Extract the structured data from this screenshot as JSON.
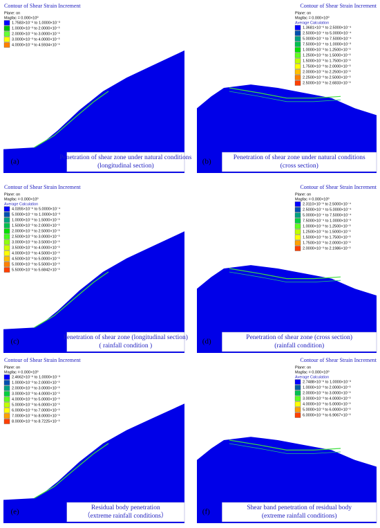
{
  "panels": [
    {
      "label": "(a)",
      "header": "Contour of Shear Strain Increment",
      "plane": "Plane: on",
      "magfac": "Magfac = 0.000×10⁰",
      "legend": [
        {
          "text": "1.7583×10⁻⁶ to 1.0000×10⁻³",
          "color": "#0000ff"
        },
        {
          "text": "1.0000×10⁻³ to 2.0000×10⁻³",
          "color": "#00c000"
        },
        {
          "text": "2.0000×10⁻³ to 3.0000×10⁻³",
          "color": "#66ff33"
        },
        {
          "text": "3.0000×10⁻³ to 4.0000×10⁻³",
          "color": "#ffff00"
        },
        {
          "text": "4.0000×10⁻³ to 4.5934×10⁻³",
          "color": "#ff8000"
        }
      ],
      "caption": [
        "Penetration of shear zone under natural conditions",
        "(longitudinal section)"
      ]
    },
    {
      "label": "(b)",
      "header": "Contour of Shear Strain Increment",
      "plane": "Plane: on",
      "magfac": "Magfac = 0.000×10⁰",
      "calculation": "Average Calculation",
      "legend": [
        {
          "text": "1.3681×10⁻⁶ to 2.5000×10⁻⁴",
          "color": "#0000ff"
        },
        {
          "text": "2.5000×10⁻⁴ to 5.0000×10⁻⁴",
          "color": "#0050b0"
        },
        {
          "text": "5.0000×10⁻⁴ to 7.5000×10⁻⁴",
          "color": "#00a080"
        },
        {
          "text": "7.5000×10⁻⁴ to 1.0000×10⁻³",
          "color": "#00c050"
        },
        {
          "text": "1.0000×10⁻³ to 1.2500×10⁻³",
          "color": "#00e000"
        },
        {
          "text": "1.2500×10⁻³ to 1.5000×10⁻³",
          "color": "#60ff20"
        },
        {
          "text": "1.5000×10⁻³ to 1.7500×10⁻³",
          "color": "#c0ff00"
        },
        {
          "text": "1.7500×10⁻³ to 2.0000×10⁻³",
          "color": "#ffff00"
        },
        {
          "text": "2.0000×10⁻³ to 2.2500×10⁻³",
          "color": "#ffc000"
        },
        {
          "text": "2.2500×10⁻³ to 2.5000×10⁻³",
          "color": "#ff8000"
        },
        {
          "text": "2.5000×10⁻³ to 2.6833×10⁻³",
          "color": "#ff4000"
        }
      ],
      "caption": [
        "Penetration of shear zone under natural conditions",
        "(cross section)"
      ]
    },
    {
      "label": "(c)",
      "header": "Contour of Shear Strain Increment",
      "plane": "Plane: on",
      "magfac": "Magfac = 0.000×10⁰",
      "calculation": "Average Calculation",
      "legend": [
        {
          "text": "4.0355×10⁻⁶ to 5.0000×10⁻⁴",
          "color": "#0000ff"
        },
        {
          "text": "5.0000×10⁻⁴ to 1.0000×10⁻³",
          "color": "#0050b0"
        },
        {
          "text": "1.0000×10⁻³ to 1.5000×10⁻³",
          "color": "#00a080"
        },
        {
          "text": "1.5000×10⁻³ to 2.0000×10⁻³",
          "color": "#00c050"
        },
        {
          "text": "2.0000×10⁻³ to 2.5000×10⁻³",
          "color": "#00e000"
        },
        {
          "text": "2.5000×10⁻³ to 3.0000×10⁻³",
          "color": "#40ff20"
        },
        {
          "text": "3.0000×10⁻³ to 3.5000×10⁻³",
          "color": "#90ff10"
        },
        {
          "text": "3.5000×10⁻³ to 4.0000×10⁻³",
          "color": "#d0ff00"
        },
        {
          "text": "4.0000×10⁻³ to 4.5000×10⁻³",
          "color": "#ffff00"
        },
        {
          "text": "4.5000×10⁻³ to 5.0000×10⁻³",
          "color": "#ffc000"
        },
        {
          "text": "5.0000×10⁻³ to 5.5000×10⁻³",
          "color": "#ff8000"
        },
        {
          "text": "5.5000×10⁻³ to 5.6842×10⁻³",
          "color": "#ff4000"
        }
      ],
      "caption": [
        "Penetration of shear zone (longitudinal section)",
        "( rainfall condition )"
      ]
    },
    {
      "label": "(d)",
      "header": "Contour of Shear Strain Increment",
      "plane": "Plane: on",
      "magfac": "Magfac = 0.000×10⁰",
      "legend": [
        {
          "text": "2.3110×10⁻⁶ to 2.5000×10⁻⁴",
          "color": "#0000ff"
        },
        {
          "text": "2.5000×10⁻⁴ to 5.0000×10⁻⁴",
          "color": "#0050b0"
        },
        {
          "text": "5.0000×10⁻⁴ to 7.5000×10⁻⁴",
          "color": "#00a080"
        },
        {
          "text": "7.5000×10⁻⁴ to 1.0000×10⁻³",
          "color": "#00d040"
        },
        {
          "text": "1.0000×10⁻³ to 1.2500×10⁻³",
          "color": "#60ff20"
        },
        {
          "text": "1.2500×10⁻³ to 1.5000×10⁻³",
          "color": "#c0ff00"
        },
        {
          "text": "1.5000×10⁻³ to 1.7500×10⁻³",
          "color": "#ffff00"
        },
        {
          "text": "1.7500×10⁻³ to 2.0000×10⁻³",
          "color": "#ffa000"
        },
        {
          "text": "2.0000×10⁻³ to 2.1986×10⁻³",
          "color": "#ff4000"
        }
      ],
      "caption": [
        "Penetration of shear zone (cross section)",
        "(rainfall condition)"
      ]
    },
    {
      "label": "(e)",
      "header": "Contour of Shear Strain Increment",
      "plane": "Plane: on",
      "magfac": "Magfac = 0.000×10⁰",
      "legend": [
        {
          "text": "2.4662×10⁻⁶ to 1.0000×10⁻³",
          "color": "#0000ff"
        },
        {
          "text": "1.0000×10⁻³ to 2.0000×10⁻³",
          "color": "#0050b0"
        },
        {
          "text": "2.0000×10⁻³ to 3.0000×10⁻³",
          "color": "#00a080"
        },
        {
          "text": "3.0000×10⁻³ to 4.0000×10⁻³",
          "color": "#00d040"
        },
        {
          "text": "4.0000×10⁻³ to 5.0000×10⁻³",
          "color": "#60ff20"
        },
        {
          "text": "5.0000×10⁻³ to 6.0000×10⁻³",
          "color": "#c0ff00"
        },
        {
          "text": "6.0000×10⁻³ to 7.0000×10⁻³",
          "color": "#ffff00"
        },
        {
          "text": "7.0000×10⁻³ to 8.0000×10⁻³",
          "color": "#ffa000"
        },
        {
          "text": "8.0000×10⁻³ to 8.7225×10⁻³",
          "color": "#ff4000"
        }
      ],
      "caption": [
        "Residual body penetration",
        "（extreme rainfall conditions）"
      ]
    },
    {
      "label": "(f)",
      "header": "Contour of Shear Strain Increment",
      "plane": "Plane: on",
      "magfac": "Magfac = 0.000×10⁰",
      "calculation": "Average Calculation",
      "legend": [
        {
          "text": "2.7488×10⁻⁶ to 1.0000×10⁻³",
          "color": "#0000ff"
        },
        {
          "text": "1.0000×10⁻³ to 2.0000×10⁻³",
          "color": "#0060a0"
        },
        {
          "text": "2.0000×10⁻³ to 3.0000×10⁻³",
          "color": "#00c050"
        },
        {
          "text": "3.0000×10⁻³ to 4.0000×10⁻³",
          "color": "#60ff20"
        },
        {
          "text": "4.0000×10⁻³ to 5.0000×10⁻³",
          "color": "#ffff00"
        },
        {
          "text": "5.0000×10⁻³ to 6.0000×10⁻³",
          "color": "#ffa000"
        },
        {
          "text": "6.0000×10⁻³ to 6.9067×10⁻³",
          "color": "#ff4000"
        }
      ],
      "caption": [
        "Shear band penetration of residual body",
        "(extreme rainfall conditions)"
      ]
    }
  ]
}
